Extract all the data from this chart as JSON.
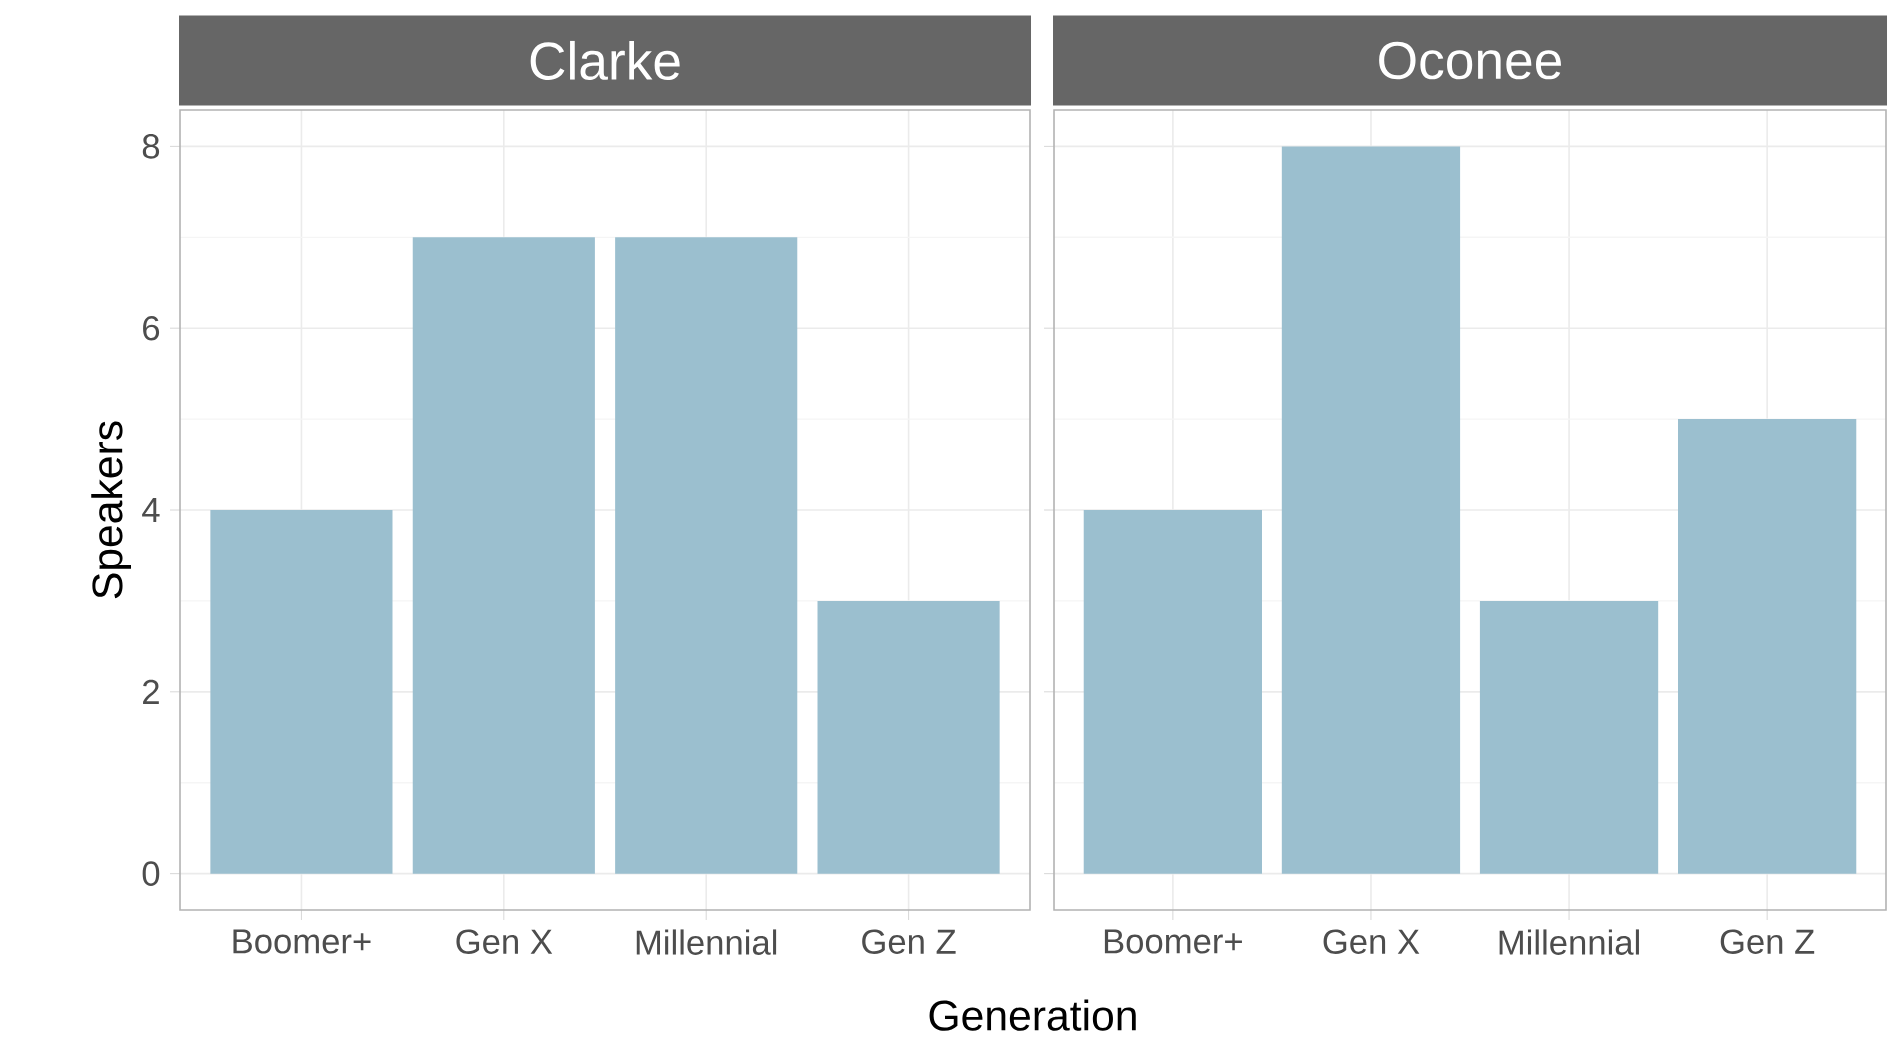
{
  "chart_data": [
    {
      "type": "bar",
      "title": "Clarke",
      "xlabel": "Generation",
      "ylabel": "Speakers",
      "categories": [
        "Boomer+",
        "Gen X",
        "Millennial",
        "Gen Z"
      ],
      "values": [
        4,
        7,
        7,
        3
      ],
      "color": "#9bbfcf",
      "ylim": [
        -0.4,
        8.4
      ],
      "yticks": [
        0,
        2,
        4,
        6,
        8
      ],
      "grid": true
    },
    {
      "type": "bar",
      "title": "Oconee",
      "categories": [
        "Boomer+",
        "Gen X",
        "Millennial",
        "Gen Z"
      ],
      "values": [
        4,
        8,
        3,
        5
      ],
      "color": "#9bbfcf",
      "ylim": [
        -0.4,
        8.4
      ],
      "yticks": [
        0,
        2,
        4,
        6,
        8
      ],
      "grid": true,
      "tick_labels": "x"
    }
  ]
}
